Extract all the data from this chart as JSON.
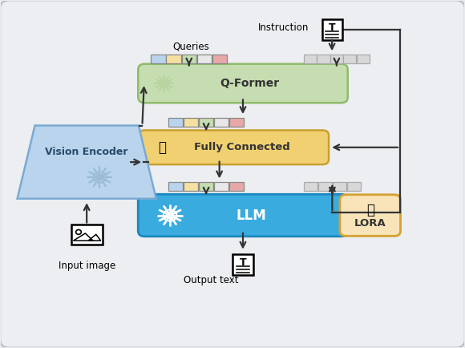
{
  "bg_color": "#e8eaed",
  "outer_bg": "#eceef1",
  "vision_encoder": {
    "label": "Vision Encoder",
    "color": "#bad4ed",
    "edge_color": "#7aaad4"
  },
  "qformer": {
    "label": "Q-Former",
    "color": "#c5ddb0",
    "edge_color": "#8fbb6a"
  },
  "fc": {
    "label": "Fully Connected",
    "color": "#f0d070",
    "edge_color": "#c8a030"
  },
  "llm": {
    "label": "LLM",
    "color": "#3aabdf",
    "edge_color": "#1a88c0"
  },
  "lora": {
    "label": "LORA",
    "color": "#f8e4b8",
    "edge_color": "#d4a030"
  },
  "instruction_label": "Instruction",
  "queries_label": "Queries",
  "input_label": "Input image",
  "output_label": "Output text",
  "query_colors": [
    "#bad4ed",
    "#f5e0a0",
    "#c5ddb0",
    "#e8e8e8",
    "#e8a8a8"
  ],
  "gray_token_color": "#d8d8d8",
  "arrow_color": "#333333"
}
